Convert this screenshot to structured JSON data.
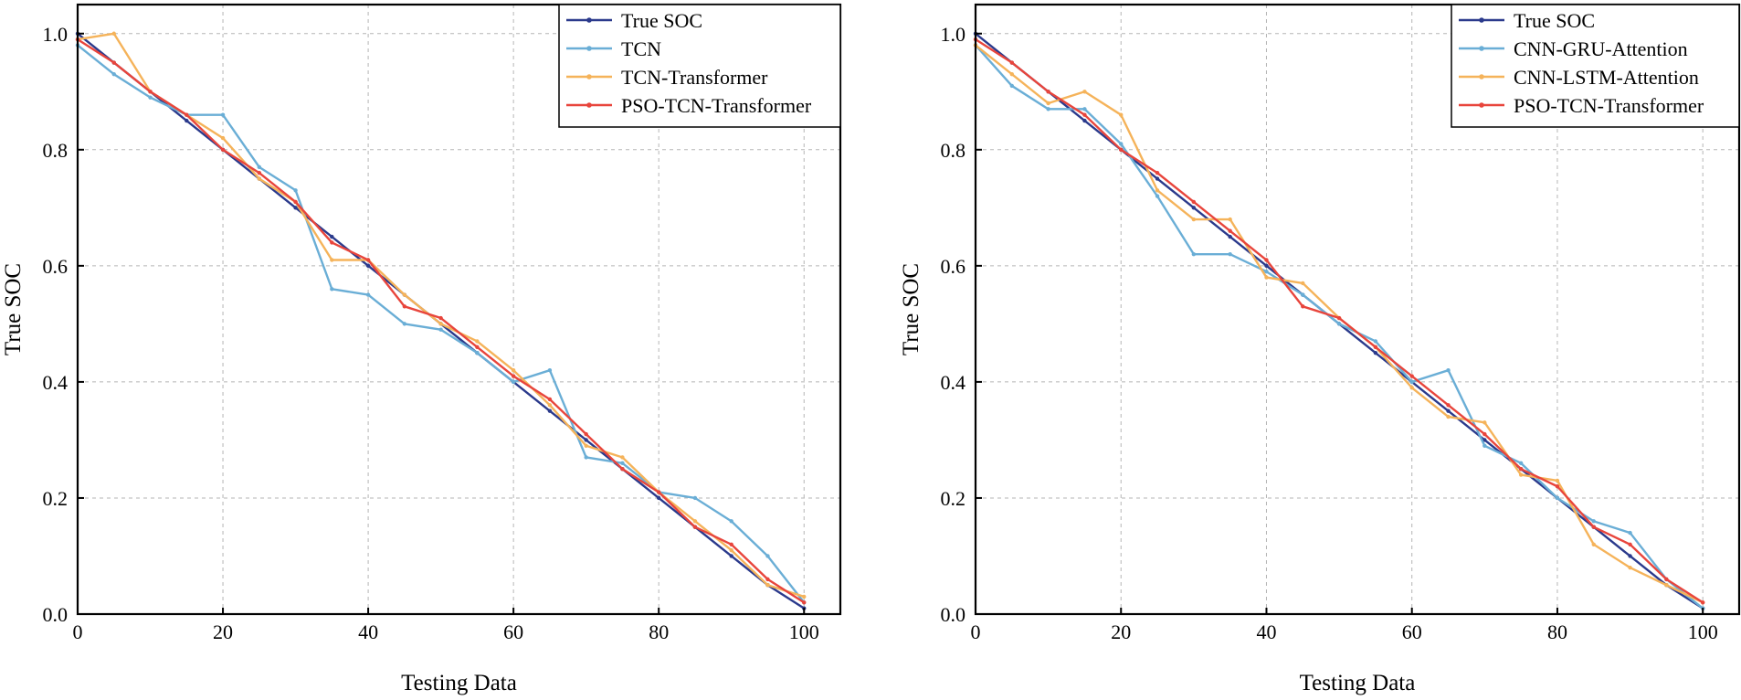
{
  "chart_data": [
    {
      "type": "line",
      "title": "",
      "xlabel": "Testing Data",
      "ylabel": "True SOC",
      "xlim": [
        0,
        105
      ],
      "ylim": [
        0,
        1.05
      ],
      "xticks": [
        0,
        20,
        40,
        60,
        80,
        100
      ],
      "xtick_labels": [
        "0",
        "20",
        "40",
        "60",
        "80",
        "100"
      ],
      "yticks": [
        0,
        0.2,
        0.4,
        0.6,
        0.8,
        1.0
      ],
      "ytick_labels": [
        "0.0",
        "0.2",
        "0.4",
        "0.6",
        "0.8",
        "1.0"
      ],
      "grid": true,
      "legend_position": "top-right",
      "x": [
        0,
        5,
        10,
        15,
        20,
        25,
        30,
        35,
        40,
        45,
        50,
        55,
        60,
        65,
        70,
        75,
        80,
        85,
        90,
        95,
        100
      ],
      "series": [
        {
          "name": "True SOC",
          "color": "#2b3a8c",
          "values": [
            1.0,
            0.95,
            0.9,
            0.85,
            0.8,
            0.75,
            0.7,
            0.65,
            0.6,
            0.55,
            0.5,
            0.45,
            0.4,
            0.35,
            0.3,
            0.25,
            0.2,
            0.15,
            0.1,
            0.05,
            0.01
          ]
        },
        {
          "name": "TCN",
          "color": "#6aaed6",
          "values": [
            0.98,
            0.93,
            0.89,
            0.86,
            0.86,
            0.77,
            0.73,
            0.56,
            0.55,
            0.5,
            0.49,
            0.45,
            0.4,
            0.42,
            0.27,
            0.26,
            0.21,
            0.2,
            0.16,
            0.1,
            0.02
          ]
        },
        {
          "name": "TCN-Transformer",
          "color": "#f5b35a",
          "values": [
            0.99,
            1.0,
            0.9,
            0.86,
            0.82,
            0.75,
            0.71,
            0.61,
            0.61,
            0.55,
            0.5,
            0.47,
            0.42,
            0.36,
            0.29,
            0.27,
            0.21,
            0.16,
            0.11,
            0.05,
            0.03
          ]
        },
        {
          "name": "PSO-TCN-Transformer",
          "color": "#e8453c",
          "values": [
            0.99,
            0.95,
            0.9,
            0.86,
            0.8,
            0.76,
            0.71,
            0.64,
            0.61,
            0.53,
            0.51,
            0.46,
            0.41,
            0.37,
            0.31,
            0.25,
            0.21,
            0.15,
            0.12,
            0.06,
            0.02
          ]
        }
      ]
    },
    {
      "type": "line",
      "title": "",
      "xlabel": "Testing Data",
      "ylabel": "True SOC",
      "xlim": [
        0,
        105
      ],
      "ylim": [
        0,
        1.05
      ],
      "xticks": [
        0,
        20,
        40,
        60,
        80,
        100
      ],
      "xtick_labels": [
        "0",
        "20",
        "40",
        "60",
        "80",
        "100"
      ],
      "yticks": [
        0,
        0.2,
        0.4,
        0.6,
        0.8,
        1.0
      ],
      "ytick_labels": [
        "0.0",
        "0.2",
        "0.4",
        "0.6",
        "0.8",
        "1.0"
      ],
      "grid": true,
      "legend_position": "top-right",
      "x": [
        0,
        5,
        10,
        15,
        20,
        25,
        30,
        35,
        40,
        45,
        50,
        55,
        60,
        65,
        70,
        75,
        80,
        85,
        90,
        95,
        100
      ],
      "series": [
        {
          "name": "True SOC",
          "color": "#2b3a8c",
          "values": [
            1.0,
            0.95,
            0.9,
            0.85,
            0.8,
            0.75,
            0.7,
            0.65,
            0.6,
            0.55,
            0.5,
            0.45,
            0.4,
            0.35,
            0.3,
            0.25,
            0.2,
            0.15,
            0.1,
            0.05,
            0.01
          ]
        },
        {
          "name": "CNN-GRU-Attention",
          "color": "#6aaed6",
          "values": [
            0.98,
            0.91,
            0.87,
            0.87,
            0.81,
            0.72,
            0.62,
            0.62,
            0.59,
            0.55,
            0.5,
            0.47,
            0.4,
            0.42,
            0.29,
            0.26,
            0.2,
            0.16,
            0.14,
            0.06,
            0.01
          ]
        },
        {
          "name": "CNN-LSTM-Attention",
          "color": "#f5b35a",
          "values": [
            0.98,
            0.93,
            0.88,
            0.9,
            0.86,
            0.73,
            0.68,
            0.68,
            0.58,
            0.57,
            0.51,
            0.46,
            0.39,
            0.34,
            0.33,
            0.24,
            0.23,
            0.12,
            0.08,
            0.05,
            0.02
          ]
        },
        {
          "name": "PSO-TCN-Transformer",
          "color": "#e8453c",
          "values": [
            0.99,
            0.95,
            0.9,
            0.86,
            0.8,
            0.76,
            0.71,
            0.66,
            0.61,
            0.53,
            0.51,
            0.46,
            0.41,
            0.36,
            0.31,
            0.25,
            0.22,
            0.15,
            0.12,
            0.06,
            0.02
          ]
        }
      ]
    }
  ]
}
